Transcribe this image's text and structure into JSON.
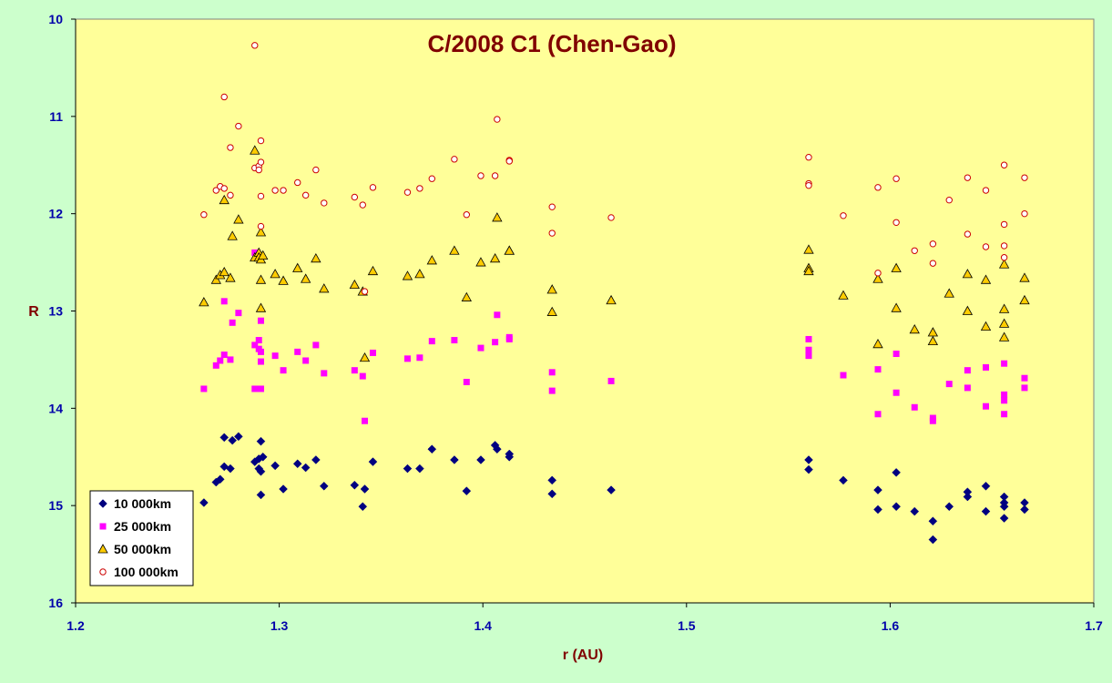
{
  "chart_data": {
    "type": "scatter",
    "title": "C/2008 C1 (Chen-Gao)",
    "xlabel": "r (AU)",
    "ylabel": "R",
    "xlim": [
      1.2,
      1.7
    ],
    "ylim": [
      10,
      16
    ],
    "y_inverted": true,
    "x_ticks": [
      "1.2",
      "1.3",
      "1.4",
      "1.5",
      "1.6",
      "1.7"
    ],
    "y_ticks": [
      "10",
      "11",
      "12",
      "13",
      "14",
      "15",
      "16"
    ],
    "grid": false,
    "legend_position": "bottom-left",
    "colors": {
      "plot_background": "#ffff99",
      "page_background": "#ccffcc",
      "title": "#800000",
      "ticks": "#0000aa"
    },
    "series": [
      {
        "name": "10 000km",
        "marker": "diamond",
        "color": "#000080",
        "points": [
          [
            1.263,
            14.97
          ],
          [
            1.269,
            14.76
          ],
          [
            1.271,
            14.73
          ],
          [
            1.273,
            14.3
          ],
          [
            1.273,
            14.6
          ],
          [
            1.276,
            14.62
          ],
          [
            1.277,
            14.33
          ],
          [
            1.28,
            14.29
          ],
          [
            1.288,
            14.55
          ],
          [
            1.29,
            14.52
          ],
          [
            1.29,
            14.62
          ],
          [
            1.291,
            14.65
          ],
          [
            1.291,
            14.89
          ],
          [
            1.291,
            14.34
          ],
          [
            1.292,
            14.5
          ],
          [
            1.298,
            14.59
          ],
          [
            1.302,
            14.83
          ],
          [
            1.309,
            14.57
          ],
          [
            1.313,
            14.61
          ],
          [
            1.318,
            14.53
          ],
          [
            1.322,
            14.8
          ],
          [
            1.337,
            14.79
          ],
          [
            1.341,
            15.01
          ],
          [
            1.342,
            14.83
          ],
          [
            1.346,
            14.55
          ],
          [
            1.363,
            14.62
          ],
          [
            1.369,
            14.62
          ],
          [
            1.375,
            14.42
          ],
          [
            1.386,
            14.53
          ],
          [
            1.392,
            14.85
          ],
          [
            1.399,
            14.53
          ],
          [
            1.406,
            14.38
          ],
          [
            1.407,
            14.42
          ],
          [
            1.413,
            14.47
          ],
          [
            1.413,
            14.5
          ],
          [
            1.434,
            14.74
          ],
          [
            1.434,
            14.88
          ],
          [
            1.463,
            14.84
          ],
          [
            1.56,
            14.53
          ],
          [
            1.56,
            14.63
          ],
          [
            1.577,
            14.74
          ],
          [
            1.594,
            14.84
          ],
          [
            1.594,
            15.04
          ],
          [
            1.603,
            14.66
          ],
          [
            1.603,
            15.01
          ],
          [
            1.612,
            15.06
          ],
          [
            1.621,
            15.16
          ],
          [
            1.621,
            15.35
          ],
          [
            1.629,
            15.01
          ],
          [
            1.638,
            14.86
          ],
          [
            1.638,
            14.91
          ],
          [
            1.647,
            14.8
          ],
          [
            1.647,
            15.06
          ],
          [
            1.656,
            14.91
          ],
          [
            1.656,
            14.97
          ],
          [
            1.656,
            15.01
          ],
          [
            1.656,
            15.13
          ],
          [
            1.666,
            14.97
          ],
          [
            1.666,
            15.04
          ]
        ]
      },
      {
        "name": "25 000km",
        "marker": "square",
        "color": "#ff00ff",
        "points": [
          [
            1.263,
            13.8
          ],
          [
            1.269,
            13.56
          ],
          [
            1.271,
            13.51
          ],
          [
            1.273,
            13.45
          ],
          [
            1.273,
            12.9
          ],
          [
            1.276,
            13.5
          ],
          [
            1.277,
            13.12
          ],
          [
            1.28,
            13.02
          ],
          [
            1.288,
            12.4
          ],
          [
            1.288,
            13.35
          ],
          [
            1.29,
            13.39
          ],
          [
            1.29,
            13.3
          ],
          [
            1.291,
            13.1
          ],
          [
            1.291,
            13.42
          ],
          [
            1.291,
            13.52
          ],
          [
            1.291,
            13.8
          ],
          [
            1.288,
            13.8
          ],
          [
            1.298,
            13.46
          ],
          [
            1.302,
            13.61
          ],
          [
            1.309,
            13.42
          ],
          [
            1.313,
            13.51
          ],
          [
            1.318,
            13.35
          ],
          [
            1.322,
            13.64
          ],
          [
            1.337,
            13.61
          ],
          [
            1.341,
            13.67
          ],
          [
            1.342,
            14.13
          ],
          [
            1.346,
            13.43
          ],
          [
            1.363,
            13.49
          ],
          [
            1.369,
            13.48
          ],
          [
            1.375,
            13.31
          ],
          [
            1.386,
            13.3
          ],
          [
            1.392,
            13.73
          ],
          [
            1.399,
            13.38
          ],
          [
            1.406,
            13.32
          ],
          [
            1.407,
            13.04
          ],
          [
            1.413,
            13.29
          ],
          [
            1.413,
            13.27
          ],
          [
            1.434,
            13.63
          ],
          [
            1.434,
            13.82
          ],
          [
            1.463,
            13.72
          ],
          [
            1.56,
            13.29
          ],
          [
            1.56,
            13.4
          ],
          [
            1.56,
            13.46
          ],
          [
            1.577,
            13.66
          ],
          [
            1.594,
            13.6
          ],
          [
            1.594,
            14.06
          ],
          [
            1.603,
            13.44
          ],
          [
            1.603,
            13.84
          ],
          [
            1.612,
            13.99
          ],
          [
            1.621,
            14.1
          ],
          [
            1.621,
            14.13
          ],
          [
            1.629,
            13.75
          ],
          [
            1.638,
            13.61
          ],
          [
            1.638,
            13.79
          ],
          [
            1.647,
            13.58
          ],
          [
            1.647,
            13.98
          ],
          [
            1.656,
            13.54
          ],
          [
            1.656,
            13.86
          ],
          [
            1.656,
            13.92
          ],
          [
            1.656,
            14.06
          ],
          [
            1.666,
            13.69
          ],
          [
            1.666,
            13.79
          ]
        ]
      },
      {
        "name": "50 000km",
        "marker": "triangle",
        "color": "#ff9900",
        "points": [
          [
            1.263,
            12.91
          ],
          [
            1.269,
            12.68
          ],
          [
            1.271,
            12.63
          ],
          [
            1.273,
            12.6
          ],
          [
            1.273,
            11.86
          ],
          [
            1.276,
            12.66
          ],
          [
            1.277,
            12.23
          ],
          [
            1.28,
            12.06
          ],
          [
            1.288,
            11.35
          ],
          [
            1.288,
            12.45
          ],
          [
            1.29,
            12.4
          ],
          [
            1.29,
            12.45
          ],
          [
            1.291,
            12.47
          ],
          [
            1.291,
            12.19
          ],
          [
            1.291,
            12.68
          ],
          [
            1.291,
            12.97
          ],
          [
            1.292,
            12.43
          ],
          [
            1.298,
            12.62
          ],
          [
            1.302,
            12.69
          ],
          [
            1.309,
            12.56
          ],
          [
            1.313,
            12.67
          ],
          [
            1.318,
            12.46
          ],
          [
            1.322,
            12.77
          ],
          [
            1.337,
            12.73
          ],
          [
            1.341,
            12.8
          ],
          [
            1.342,
            13.48
          ],
          [
            1.346,
            12.59
          ],
          [
            1.363,
            12.64
          ],
          [
            1.369,
            12.62
          ],
          [
            1.375,
            12.48
          ],
          [
            1.386,
            12.38
          ],
          [
            1.392,
            12.86
          ],
          [
            1.399,
            12.5
          ],
          [
            1.406,
            12.46
          ],
          [
            1.407,
            12.04
          ],
          [
            1.413,
            12.38
          ],
          [
            1.413,
            12.38
          ],
          [
            1.434,
            12.78
          ],
          [
            1.434,
            13.01
          ],
          [
            1.463,
            12.89
          ],
          [
            1.56,
            12.37
          ],
          [
            1.56,
            12.56
          ],
          [
            1.56,
            12.59
          ],
          [
            1.577,
            12.84
          ],
          [
            1.594,
            12.67
          ],
          [
            1.594,
            13.34
          ],
          [
            1.603,
            12.56
          ],
          [
            1.603,
            12.97
          ],
          [
            1.612,
            13.19
          ],
          [
            1.621,
            13.22
          ],
          [
            1.621,
            13.31
          ],
          [
            1.629,
            12.82
          ],
          [
            1.638,
            12.62
          ],
          [
            1.638,
            13.0
          ],
          [
            1.647,
            12.68
          ],
          [
            1.647,
            13.16
          ],
          [
            1.656,
            12.52
          ],
          [
            1.656,
            12.98
          ],
          [
            1.656,
            13.13
          ],
          [
            1.656,
            13.27
          ],
          [
            1.666,
            12.66
          ],
          [
            1.666,
            12.89
          ]
        ]
      },
      {
        "name": "100 000km",
        "marker": "circle",
        "color": "#cc0000",
        "points": [
          [
            1.263,
            12.01
          ],
          [
            1.269,
            11.76
          ],
          [
            1.271,
            11.72
          ],
          [
            1.273,
            10.8
          ],
          [
            1.273,
            11.74
          ],
          [
            1.276,
            11.81
          ],
          [
            1.276,
            11.32
          ],
          [
            1.28,
            11.1
          ],
          [
            1.288,
            10.27
          ],
          [
            1.288,
            11.53
          ],
          [
            1.29,
            11.51
          ],
          [
            1.29,
            11.55
          ],
          [
            1.291,
            11.47
          ],
          [
            1.291,
            11.25
          ],
          [
            1.291,
            11.82
          ],
          [
            1.291,
            12.13
          ],
          [
            1.298,
            11.76
          ],
          [
            1.302,
            11.76
          ],
          [
            1.309,
            11.68
          ],
          [
            1.313,
            11.81
          ],
          [
            1.318,
            11.55
          ],
          [
            1.322,
            11.89
          ],
          [
            1.337,
            11.83
          ],
          [
            1.341,
            11.91
          ],
          [
            1.342,
            12.8
          ],
          [
            1.346,
            11.73
          ],
          [
            1.363,
            11.78
          ],
          [
            1.369,
            11.74
          ],
          [
            1.375,
            11.64
          ],
          [
            1.386,
            11.44
          ],
          [
            1.392,
            12.01
          ],
          [
            1.399,
            11.61
          ],
          [
            1.406,
            11.61
          ],
          [
            1.407,
            11.03
          ],
          [
            1.413,
            11.45
          ],
          [
            1.413,
            11.46
          ],
          [
            1.434,
            11.93
          ],
          [
            1.434,
            12.2
          ],
          [
            1.463,
            12.04
          ],
          [
            1.56,
            11.42
          ],
          [
            1.56,
            11.69
          ],
          [
            1.56,
            11.71
          ],
          [
            1.577,
            12.02
          ],
          [
            1.594,
            11.73
          ],
          [
            1.594,
            12.61
          ],
          [
            1.603,
            11.64
          ],
          [
            1.603,
            12.09
          ],
          [
            1.612,
            12.38
          ],
          [
            1.621,
            12.31
          ],
          [
            1.621,
            12.51
          ],
          [
            1.629,
            11.86
          ],
          [
            1.638,
            11.63
          ],
          [
            1.638,
            12.21
          ],
          [
            1.647,
            11.76
          ],
          [
            1.647,
            12.34
          ],
          [
            1.656,
            11.5
          ],
          [
            1.656,
            12.11
          ],
          [
            1.656,
            12.33
          ],
          [
            1.656,
            12.45
          ],
          [
            1.666,
            11.63
          ],
          [
            1.666,
            12.0
          ]
        ]
      }
    ]
  }
}
